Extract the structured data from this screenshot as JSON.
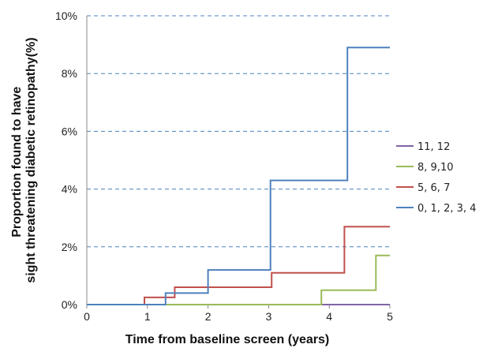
{
  "chart_data": {
    "type": "line",
    "step": true,
    "xlabel": "Time from baseline screen (years)",
    "ylabel": "Proportion found to have sight threatening diabetic retinopathy(%)",
    "ylabel_lines": [
      "Proportion found to have",
      "sight threatening diabetic retinopathy(%)"
    ],
    "xlim": [
      0,
      5
    ],
    "ylim": [
      0,
      10
    ],
    "x_ticks": [
      0,
      1,
      2,
      3,
      4,
      5
    ],
    "x_tick_labels": [
      "0",
      "1",
      "2",
      "3",
      "4",
      "5"
    ],
    "y_ticks": [
      0,
      2,
      4,
      6,
      8,
      10
    ],
    "y_tick_labels": [
      "0%",
      "2%",
      "4%",
      "6%",
      "8%",
      "10%"
    ],
    "grid": "horizontal dashed",
    "legend_position": "right",
    "series": [
      {
        "name": "11, 12",
        "color": "#8064a2",
        "x": [
          0,
          5
        ],
        "y": [
          0,
          0
        ]
      },
      {
        "name": "8, 9,10",
        "color": "#9bbb59",
        "x": [
          0,
          3.87,
          3.87,
          4.77,
          4.77,
          5
        ],
        "y": [
          0,
          0,
          0.5,
          0.5,
          1.7,
          1.7
        ]
      },
      {
        "name": "5, 6, 7",
        "color": "#c0504d",
        "x": [
          0,
          0.95,
          0.95,
          1.45,
          1.45,
          3.05,
          3.05,
          4.25,
          4.25,
          5
        ],
        "y": [
          0,
          0,
          0.25,
          0.25,
          0.6,
          0.6,
          1.1,
          1.1,
          2.7,
          2.7
        ]
      },
      {
        "name": "0, 1, 2, 3, 4",
        "color": "#4f81bd",
        "x": [
          0,
          1.3,
          1.3,
          2.0,
          2.0,
          3.03,
          3.03,
          4.3,
          4.3,
          5
        ],
        "y": [
          0,
          0,
          0.4,
          0.4,
          1.2,
          1.2,
          4.3,
          4.3,
          8.9,
          8.9
        ]
      }
    ]
  }
}
